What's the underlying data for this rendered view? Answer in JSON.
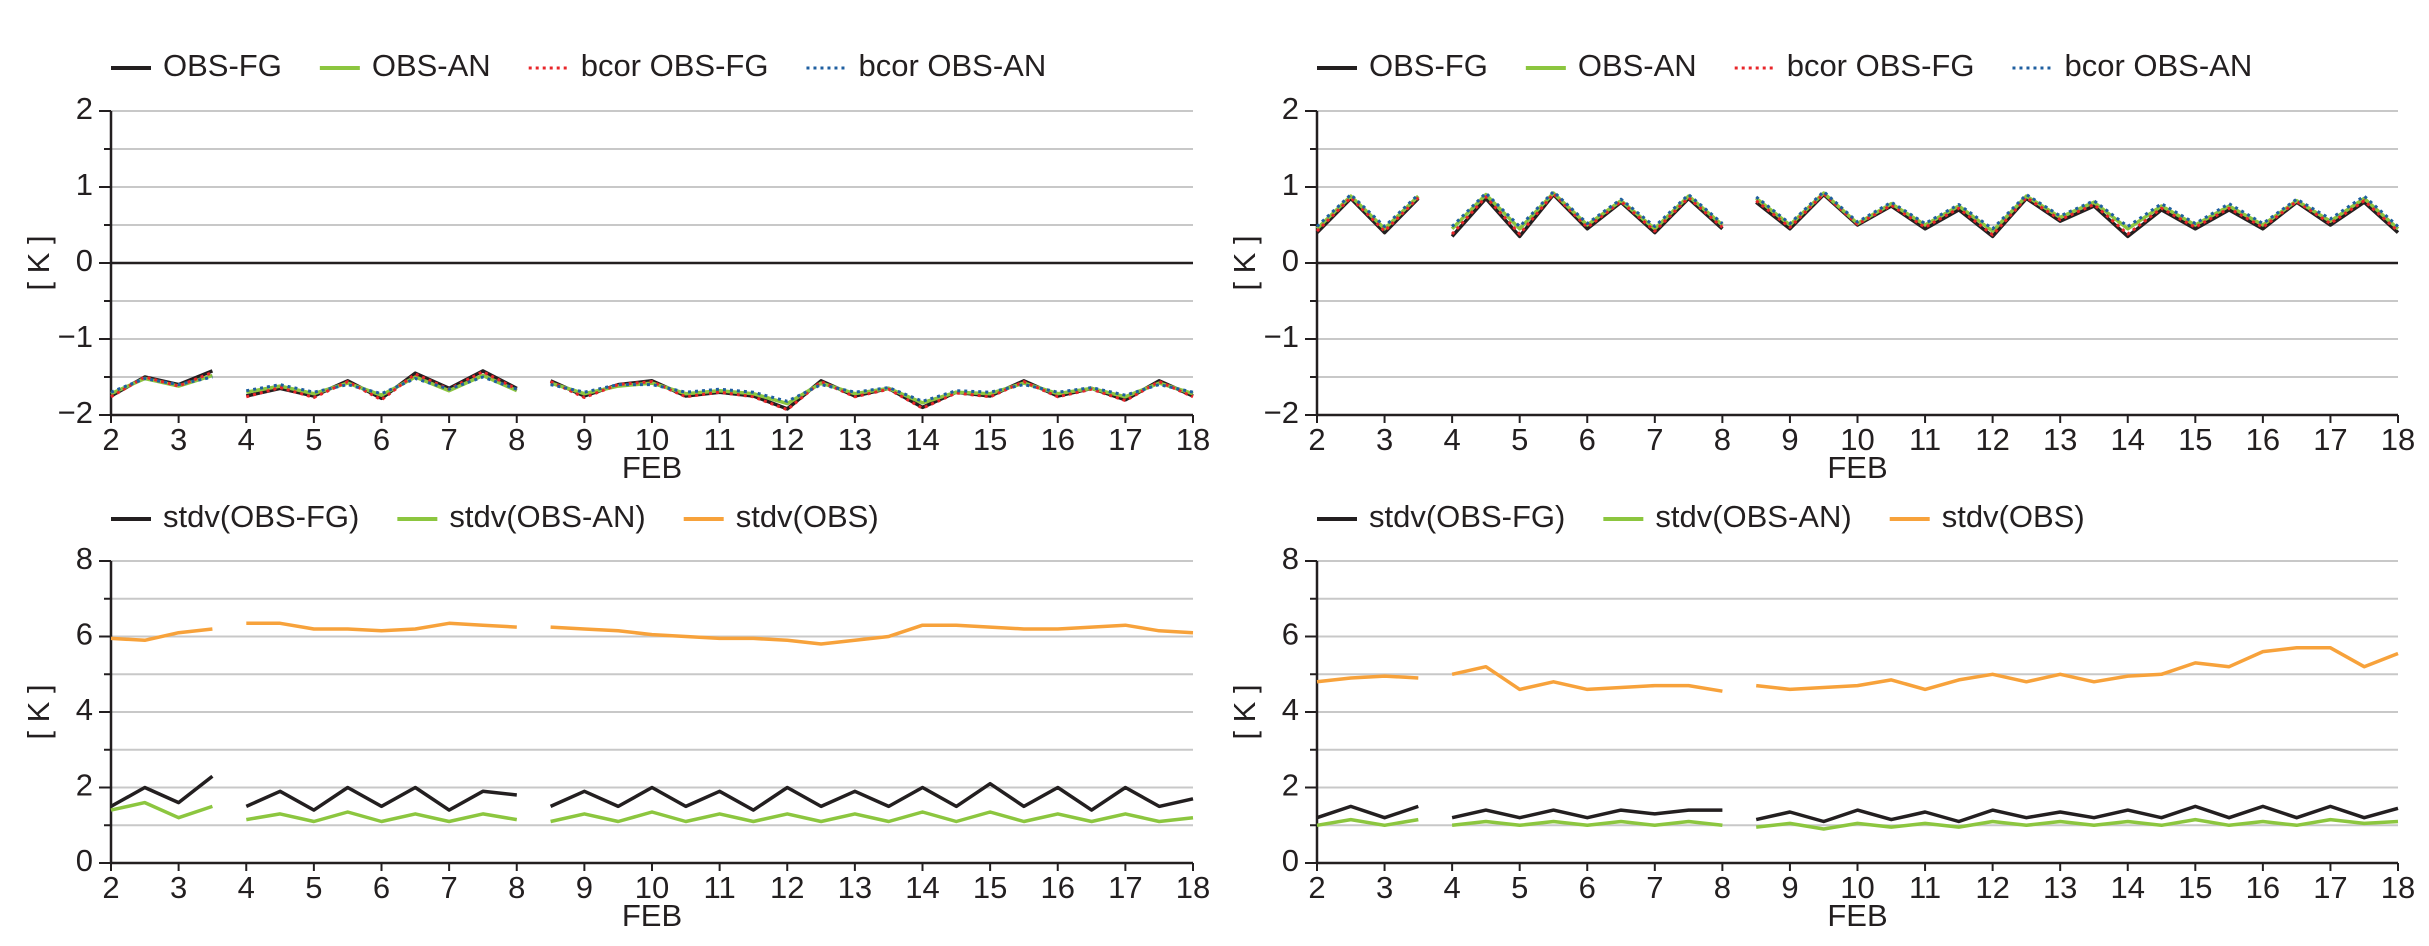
{
  "chart_data": [
    {
      "type": "line",
      "ylabel": "[ K ]",
      "xlabel": "FEB",
      "legend": "top",
      "grid": true,
      "zero_line": true,
      "xlim": [
        2,
        18
      ],
      "xticks": [
        2,
        3,
        4,
        5,
        6,
        7,
        8,
        9,
        10,
        11,
        12,
        13,
        14,
        15,
        16,
        17,
        18
      ],
      "ylim": [
        -2,
        2
      ],
      "yticks": [
        {
          "value": -2,
          "label": "−2"
        },
        {
          "value": -1,
          "label": "−1"
        },
        0,
        1,
        2
      ],
      "yminor": [
        -1.5,
        -0.5,
        0.5,
        1.5
      ],
      "x": [
        2,
        2.5,
        3,
        3.5,
        3.75,
        4,
        4.5,
        5,
        5.5,
        6,
        6.5,
        7,
        7.5,
        8,
        8.25,
        8.5,
        9,
        9.5,
        10,
        10.5,
        11,
        11.5,
        12,
        12.5,
        13,
        13.5,
        14,
        14.5,
        15,
        15.5,
        16,
        16.5,
        17,
        17.5,
        18
      ],
      "series": [
        {
          "name": "OBS-FG",
          "color": "#231f20",
          "style": "solid",
          "values": [
            -1.75,
            -1.5,
            -1.6,
            -1.42,
            null,
            -1.75,
            -1.65,
            -1.75,
            -1.55,
            -1.78,
            -1.45,
            -1.65,
            -1.42,
            -1.65,
            null,
            -1.55,
            -1.75,
            -1.6,
            -1.55,
            -1.75,
            -1.7,
            -1.75,
            -1.92,
            -1.55,
            -1.75,
            -1.65,
            -1.9,
            -1.7,
            -1.75,
            -1.55,
            -1.75,
            -1.65,
            -1.8,
            -1.55,
            -1.75
          ]
        },
        {
          "name": "OBS-AN",
          "color": "#8cc63f",
          "style": "solid",
          "values": [
            -1.72,
            -1.52,
            -1.62,
            -1.48,
            null,
            -1.7,
            -1.62,
            -1.72,
            -1.58,
            -1.74,
            -1.5,
            -1.68,
            -1.48,
            -1.68,
            null,
            -1.58,
            -1.72,
            -1.62,
            -1.58,
            -1.72,
            -1.68,
            -1.72,
            -1.85,
            -1.58,
            -1.72,
            -1.65,
            -1.84,
            -1.7,
            -1.72,
            -1.58,
            -1.72,
            -1.65,
            -1.76,
            -1.58,
            -1.72
          ]
        },
        {
          "name": "bcor OBS-FG",
          "color": "#e8262a",
          "style": "dotted",
          "values": [
            -1.76,
            -1.5,
            -1.62,
            -1.44,
            null,
            -1.76,
            -1.64,
            -1.77,
            -1.56,
            -1.8,
            -1.46,
            -1.66,
            -1.43,
            -1.66,
            null,
            -1.56,
            -1.77,
            -1.6,
            -1.56,
            -1.76,
            -1.7,
            -1.76,
            -1.93,
            -1.56,
            -1.76,
            -1.66,
            -1.91,
            -1.71,
            -1.76,
            -1.56,
            -1.76,
            -1.66,
            -1.81,
            -1.56,
            -1.76
          ]
        },
        {
          "name": "bcor OBS-AN",
          "color": "#1f5fa0",
          "style": "dotted",
          "values": [
            -1.7,
            -1.52,
            -1.6,
            -1.5,
            null,
            -1.68,
            -1.6,
            -1.7,
            -1.6,
            -1.72,
            -1.52,
            -1.66,
            -1.5,
            -1.66,
            null,
            -1.6,
            -1.7,
            -1.6,
            -1.6,
            -1.7,
            -1.66,
            -1.7,
            -1.82,
            -1.6,
            -1.7,
            -1.64,
            -1.82,
            -1.68,
            -1.7,
            -1.6,
            -1.7,
            -1.64,
            -1.74,
            -1.6,
            -1.7
          ]
        }
      ]
    },
    {
      "type": "line",
      "ylabel": "[ K ]",
      "xlabel": "FEB",
      "legend": "top",
      "grid": true,
      "zero_line": true,
      "xlim": [
        2,
        18
      ],
      "xticks": [
        2,
        3,
        4,
        5,
        6,
        7,
        8,
        9,
        10,
        11,
        12,
        13,
        14,
        15,
        16,
        17,
        18
      ],
      "ylim": [
        -2,
        2
      ],
      "yticks": [
        {
          "value": -2,
          "label": "−2"
        },
        {
          "value": -1,
          "label": "−1"
        },
        0,
        1,
        2
      ],
      "yminor": [
        -1.5,
        -0.5,
        0.5,
        1.5
      ],
      "x": [
        2,
        2.5,
        3,
        3.5,
        3.75,
        4,
        4.5,
        5,
        5.5,
        6,
        6.5,
        7,
        7.5,
        8,
        8.25,
        8.5,
        9,
        9.5,
        10,
        10.5,
        11,
        11.5,
        12,
        12.5,
        13,
        13.5,
        14,
        14.5,
        15,
        15.5,
        16,
        16.5,
        17,
        17.5,
        18
      ],
      "series": [
        {
          "name": "OBS-FG",
          "color": "#231f20",
          "style": "solid",
          "values": [
            0.4,
            0.85,
            0.4,
            0.85,
            null,
            0.35,
            0.85,
            0.35,
            0.9,
            0.45,
            0.8,
            0.4,
            0.85,
            0.45,
            null,
            0.8,
            0.45,
            0.9,
            0.5,
            0.75,
            0.45,
            0.7,
            0.35,
            0.85,
            0.55,
            0.75,
            0.35,
            0.7,
            0.45,
            0.7,
            0.45,
            0.8,
            0.5,
            0.8,
            0.4
          ]
        },
        {
          "name": "OBS-AN",
          "color": "#8cc63f",
          "style": "solid",
          "values": [
            0.45,
            0.88,
            0.45,
            0.88,
            null,
            0.45,
            0.9,
            0.45,
            0.92,
            0.5,
            0.82,
            0.45,
            0.88,
            0.5,
            null,
            0.85,
            0.5,
            0.92,
            0.52,
            0.78,
            0.5,
            0.75,
            0.42,
            0.88,
            0.6,
            0.8,
            0.45,
            0.75,
            0.5,
            0.75,
            0.5,
            0.82,
            0.55,
            0.85,
            0.45
          ]
        },
        {
          "name": "bcor OBS-FG",
          "color": "#e8262a",
          "style": "dotted",
          "values": [
            0.42,
            0.86,
            0.42,
            0.86,
            null,
            0.38,
            0.87,
            0.38,
            0.91,
            0.47,
            0.81,
            0.42,
            0.86,
            0.47,
            null,
            0.82,
            0.47,
            0.91,
            0.51,
            0.76,
            0.47,
            0.72,
            0.37,
            0.86,
            0.57,
            0.77,
            0.38,
            0.72,
            0.47,
            0.72,
            0.47,
            0.81,
            0.52,
            0.82,
            0.42
          ]
        },
        {
          "name": "bcor OBS-AN",
          "color": "#1f5fa0",
          "style": "dotted",
          "values": [
            0.48,
            0.9,
            0.48,
            0.9,
            null,
            0.48,
            0.92,
            0.48,
            0.94,
            0.52,
            0.84,
            0.48,
            0.9,
            0.52,
            null,
            0.87,
            0.52,
            0.94,
            0.54,
            0.8,
            0.52,
            0.77,
            0.45,
            0.9,
            0.62,
            0.82,
            0.48,
            0.78,
            0.52,
            0.78,
            0.52,
            0.84,
            0.58,
            0.88,
            0.48
          ]
        }
      ]
    },
    {
      "type": "line",
      "ylabel": "[ K ]",
      "xlabel": "FEB",
      "legend": "top",
      "grid": true,
      "zero_line": false,
      "xlim": [
        2,
        18
      ],
      "xticks": [
        2,
        3,
        4,
        5,
        6,
        7,
        8,
        9,
        10,
        11,
        12,
        13,
        14,
        15,
        16,
        17,
        18
      ],
      "ylim": [
        0,
        8
      ],
      "yticks": [
        0,
        2,
        4,
        6,
        8
      ],
      "yminor": [
        1,
        3,
        5,
        7
      ],
      "x": [
        2,
        2.5,
        3,
        3.5,
        3.75,
        4,
        4.5,
        5,
        5.5,
        6,
        6.5,
        7,
        7.5,
        8,
        8.25,
        8.5,
        9,
        9.5,
        10,
        10.5,
        11,
        11.5,
        12,
        12.5,
        13,
        13.5,
        14,
        14.5,
        15,
        15.5,
        16,
        16.5,
        17,
        17.5,
        18
      ],
      "series": [
        {
          "name": "stdv(OBS-FG)",
          "color": "#231f20",
          "style": "solid",
          "values": [
            1.5,
            2.0,
            1.6,
            2.3,
            null,
            1.5,
            1.9,
            1.4,
            2.0,
            1.5,
            2.0,
            1.4,
            1.9,
            1.8,
            null,
            1.5,
            1.9,
            1.5,
            2.0,
            1.5,
            1.9,
            1.4,
            2.0,
            1.5,
            1.9,
            1.5,
            2.0,
            1.5,
            2.1,
            1.5,
            2.0,
            1.4,
            2.0,
            1.5,
            1.7
          ]
        },
        {
          "name": "stdv(OBS-AN)",
          "color": "#8cc63f",
          "style": "solid",
          "values": [
            1.4,
            1.6,
            1.2,
            1.5,
            null,
            1.15,
            1.3,
            1.1,
            1.35,
            1.1,
            1.3,
            1.1,
            1.3,
            1.15,
            null,
            1.1,
            1.3,
            1.1,
            1.35,
            1.1,
            1.3,
            1.1,
            1.3,
            1.1,
            1.3,
            1.1,
            1.35,
            1.1,
            1.35,
            1.1,
            1.3,
            1.1,
            1.3,
            1.1,
            1.2
          ]
        },
        {
          "name": "stdv(OBS)",
          "color": "#f7a23b",
          "style": "solid",
          "values": [
            5.95,
            5.9,
            6.1,
            6.2,
            null,
            6.35,
            6.35,
            6.2,
            6.2,
            6.15,
            6.2,
            6.35,
            6.3,
            6.25,
            null,
            6.25,
            6.2,
            6.15,
            6.05,
            6.0,
            5.95,
            5.95,
            5.9,
            5.8,
            5.9,
            6.0,
            6.3,
            6.3,
            6.25,
            6.2,
            6.2,
            6.25,
            6.3,
            6.15,
            6.1
          ]
        }
      ]
    },
    {
      "type": "line",
      "ylabel": "[ K ]",
      "xlabel": "FEB",
      "legend": "top",
      "grid": true,
      "zero_line": false,
      "xlim": [
        2,
        18
      ],
      "xticks": [
        2,
        3,
        4,
        5,
        6,
        7,
        8,
        9,
        10,
        11,
        12,
        13,
        14,
        15,
        16,
        17,
        18
      ],
      "ylim": [
        0,
        8
      ],
      "yticks": [
        0,
        2,
        4,
        6,
        8
      ],
      "yminor": [
        1,
        3,
        5,
        7
      ],
      "x": [
        2,
        2.5,
        3,
        3.5,
        3.75,
        4,
        4.5,
        5,
        5.5,
        6,
        6.5,
        7,
        7.5,
        8,
        8.25,
        8.5,
        9,
        9.5,
        10,
        10.5,
        11,
        11.5,
        12,
        12.5,
        13,
        13.5,
        14,
        14.5,
        15,
        15.5,
        16,
        16.5,
        17,
        17.5,
        18
      ],
      "series": [
        {
          "name": "stdv(OBS-FG)",
          "color": "#231f20",
          "style": "solid",
          "values": [
            1.2,
            1.5,
            1.2,
            1.5,
            null,
            1.2,
            1.4,
            1.2,
            1.4,
            1.2,
            1.4,
            1.3,
            1.4,
            1.4,
            null,
            1.15,
            1.35,
            1.1,
            1.4,
            1.15,
            1.35,
            1.1,
            1.4,
            1.2,
            1.35,
            1.2,
            1.4,
            1.2,
            1.5,
            1.2,
            1.5,
            1.2,
            1.5,
            1.2,
            1.45
          ]
        },
        {
          "name": "stdv(OBS-AN)",
          "color": "#8cc63f",
          "style": "solid",
          "values": [
            1.0,
            1.15,
            1.0,
            1.15,
            null,
            1.0,
            1.1,
            1.0,
            1.1,
            1.0,
            1.1,
            1.0,
            1.1,
            1.0,
            null,
            0.95,
            1.05,
            0.9,
            1.05,
            0.95,
            1.05,
            0.95,
            1.1,
            1.0,
            1.1,
            1.0,
            1.1,
            1.0,
            1.15,
            1.0,
            1.1,
            1.0,
            1.15,
            1.05,
            1.1
          ]
        },
        {
          "name": "stdv(OBS)",
          "color": "#f7a23b",
          "style": "solid",
          "values": [
            4.8,
            4.9,
            4.95,
            4.9,
            null,
            5.0,
            5.2,
            4.6,
            4.8,
            4.6,
            4.65,
            4.7,
            4.7,
            4.55,
            null,
            4.7,
            4.6,
            4.65,
            4.7,
            4.85,
            4.6,
            4.85,
            5.0,
            4.8,
            5.0,
            4.8,
            4.95,
            5.0,
            5.3,
            5.2,
            5.6,
            5.7,
            5.7,
            5.2,
            5.55
          ]
        }
      ]
    }
  ]
}
